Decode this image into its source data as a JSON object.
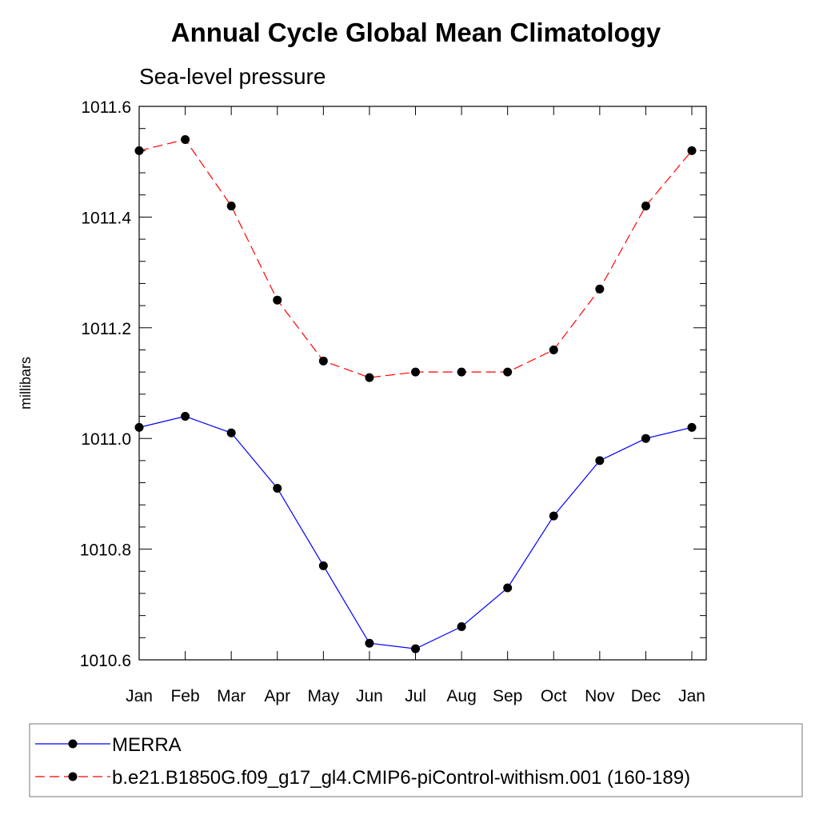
{
  "chart_data": {
    "type": "line",
    "title": "Annual Cycle Global Mean Climatology",
    "subtitle": "Sea-level pressure",
    "ylabel": "millibars",
    "xlabel": "",
    "categories": [
      "Jan",
      "Feb",
      "Mar",
      "Apr",
      "May",
      "Jun",
      "Jul",
      "Aug",
      "Sep",
      "Oct",
      "Nov",
      "Dec",
      "Jan"
    ],
    "ylim": [
      1010.6,
      1011.6
    ],
    "yticks": [
      "1010.6",
      "1010.8",
      "1011.0",
      "1011.2",
      "1011.4",
      "1011.6"
    ],
    "grid": false,
    "legend_position": "bottom",
    "series": [
      {
        "name": "MERRA",
        "color": "#0000ff",
        "style": "solid",
        "values": [
          1011.02,
          1011.04,
          1011.01,
          1010.91,
          1010.77,
          1010.63,
          1010.62,
          1010.66,
          1010.73,
          1010.86,
          1010.96,
          1011.0,
          1011.02
        ]
      },
      {
        "name": "b.e21.B1850G.f09_g17_gl4.CMIP6-piControl-withism.001 (160-189)",
        "color": "#ff0000",
        "style": "dashed",
        "values": [
          1011.52,
          1011.54,
          1011.42,
          1011.25,
          1011.14,
          1011.11,
          1011.12,
          1011.12,
          1011.12,
          1011.16,
          1011.27,
          1011.42,
          1011.52
        ]
      }
    ]
  }
}
